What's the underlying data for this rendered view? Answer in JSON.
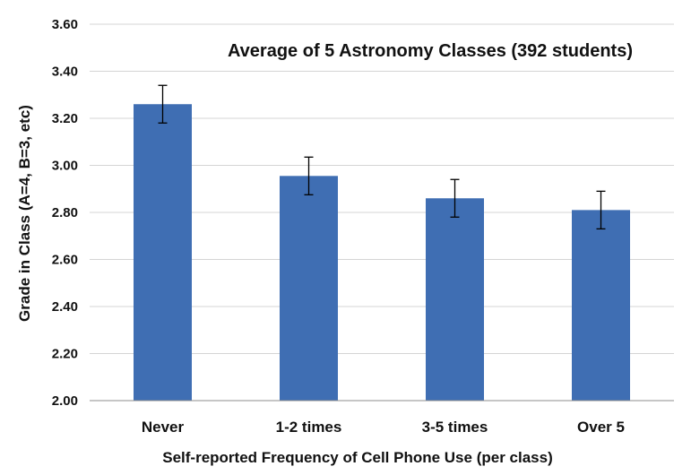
{
  "chart_data": {
    "type": "bar",
    "title": "Average of 5 Astronomy Classes (392 students)",
    "xlabel": "Self-reported Frequency of Cell Phone Use (per class)",
    "ylabel": "Grade in Class (A=4, B=3, etc)",
    "categories": [
      "Never",
      "1-2 times",
      "3-5 times",
      "Over 5"
    ],
    "values": [
      3.26,
      2.955,
      2.86,
      2.81
    ],
    "error": [
      0.08,
      0.08,
      0.08,
      0.08
    ],
    "ylim": [
      2.0,
      3.6
    ],
    "yticks": [
      "2.00",
      "2.20",
      "2.40",
      "2.60",
      "2.80",
      "3.00",
      "3.20",
      "3.40",
      "3.60"
    ],
    "grid": true,
    "colors": {
      "bar": "#3f6eb3",
      "grid": "#d4d4d4",
      "axis": "#8c8c8c",
      "error": "#000000"
    }
  }
}
